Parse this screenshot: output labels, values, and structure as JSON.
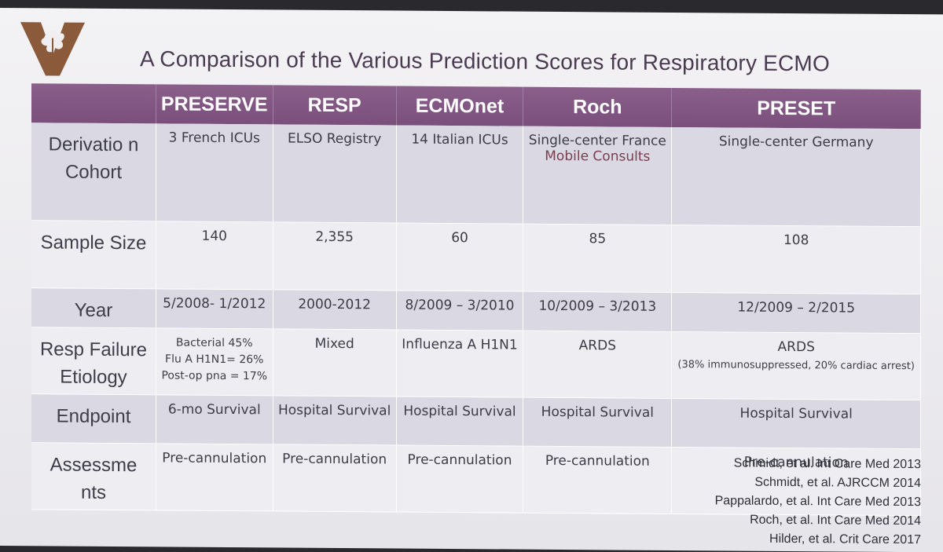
{
  "title": "A Comparison of the Various Prediction Scores for Respiratory ECMO",
  "colors": {
    "header_bg": "#7a4f7c",
    "logo": "#8b5a3a",
    "title": "#4a3a52"
  },
  "table": {
    "columns": [
      "",
      "PRESERVE",
      "RESP",
      "ECMOnet",
      "Roch",
      "PRESET"
    ],
    "rows": [
      {
        "label": "Derivatio n Cohort",
        "cells": [
          "3 French ICUs",
          "ELSO Registry",
          "14 Italian ICUs",
          "Single-center France",
          "Single-center Germany"
        ],
        "roch_extra": "Mobile Consults"
      },
      {
        "label": "Sample Size",
        "cells": [
          "140",
          "2,355",
          "60",
          "85",
          "108"
        ]
      },
      {
        "label": "Year",
        "cells": [
          "5/2008- 1/2012",
          "2000-2012",
          "8/2009 – 3/2010",
          "10/2009 – 3/2013",
          "12/2009 – 2/2015"
        ]
      },
      {
        "label": "Resp Failure Etiology",
        "cells": [
          "Bacterial 45%",
          "Mixed",
          "Influenza A H1N1",
          "ARDS",
          "ARDS"
        ],
        "preserve_extra": [
          "Flu A H1N1= 26%",
          "Post-op pna = 17%"
        ],
        "preset_extra": "(38% immunosuppressed, 20% cardiac arrest)"
      },
      {
        "label": "Endpoint",
        "cells": [
          "6-mo Survival",
          "Hospital Survival",
          "Hospital Survival",
          "Hospital Survival",
          "Hospital Survival"
        ]
      },
      {
        "label": "Assessme nts",
        "cells": [
          "Pre-cannulation",
          "Pre-cannulation",
          "Pre-cannulation",
          "Pre-cannulation",
          "Pre-cannulation"
        ]
      }
    ]
  },
  "citations": [
    "Schmidt, et al. Int Care Med 2013",
    "Schmidt, et al. AJRCCM 2014",
    "Pappalardo, et al. Int Care Med 2013",
    "Roch, et al. Int Care Med 2014",
    "Hilder, et al. Crit Care 2017"
  ]
}
